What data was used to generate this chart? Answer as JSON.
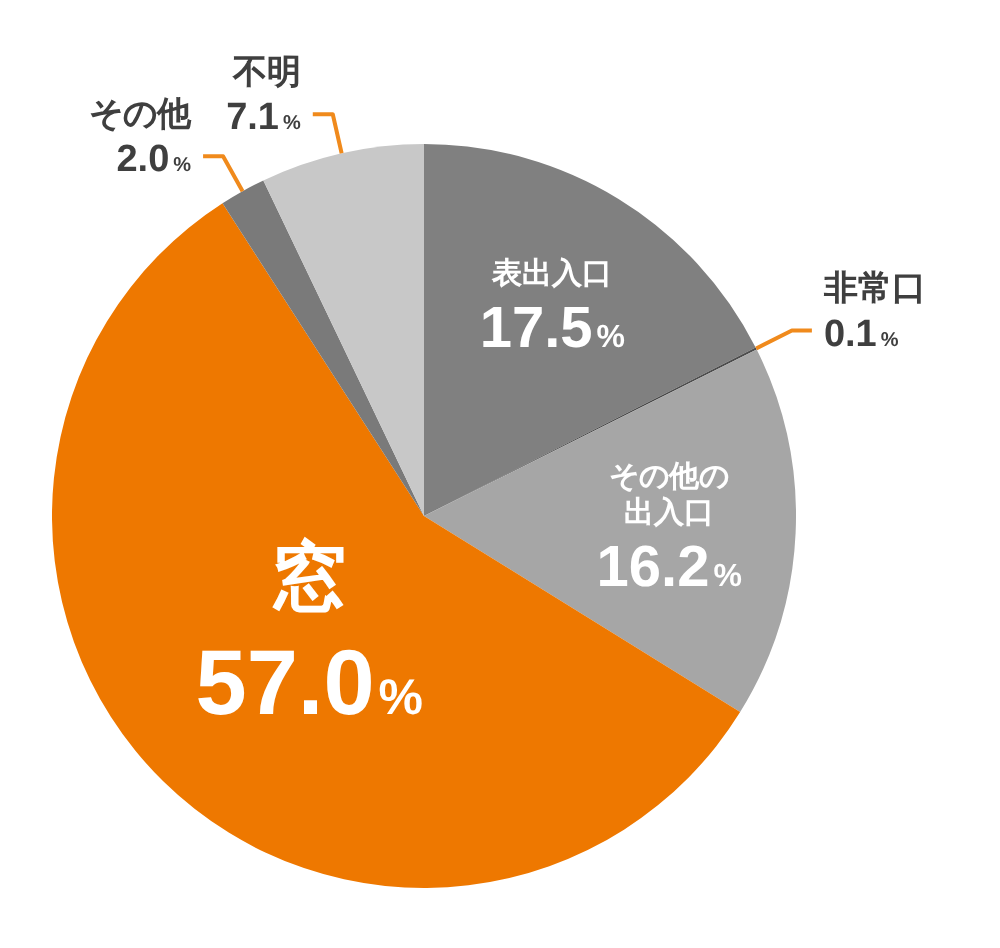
{
  "chart_data": {
    "type": "pie",
    "categories": [
      "表出入口",
      "非常口",
      "その他の出入口",
      "窓",
      "その他",
      "不明"
    ],
    "values": [
      17.5,
      0.1,
      16.2,
      57.0,
      2.0,
      7.1
    ],
    "colors": [
      "#808080",
      "#4d4d4d",
      "#a6a6a6",
      "#ee7800",
      "#7a7a7a",
      "#c8c8c8"
    ],
    "value_labels": [
      "17.5%",
      "0.1%",
      "16.2%",
      "57.0%",
      "2.0%",
      "7.1%"
    ]
  }
}
